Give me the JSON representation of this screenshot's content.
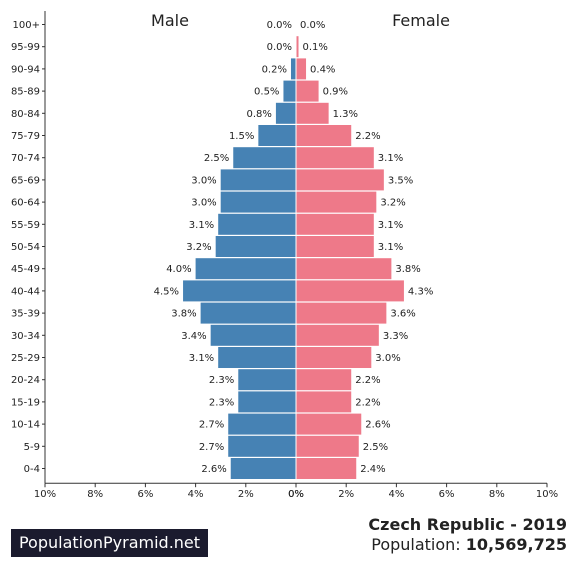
{
  "chart_data": {
    "type": "bar",
    "orientation": "horizontal-pyramid",
    "left_label": "Male",
    "right_label": "Female",
    "categories": [
      "100+",
      "95-99",
      "90-94",
      "85-89",
      "80-84",
      "75-79",
      "70-74",
      "65-69",
      "60-64",
      "55-59",
      "50-54",
      "45-49",
      "40-44",
      "35-39",
      "30-34",
      "25-29",
      "20-24",
      "15-19",
      "10-14",
      "5-9",
      "0-4"
    ],
    "series": [
      {
        "name": "Male",
        "color": "#4682b4",
        "values": [
          0.0,
          0.0,
          0.2,
          0.5,
          0.8,
          1.5,
          2.5,
          3.0,
          3.0,
          3.1,
          3.2,
          4.0,
          4.5,
          3.8,
          3.4,
          3.1,
          2.3,
          2.3,
          2.7,
          2.7,
          2.6
        ],
        "labels": [
          "0.0%",
          "0.0%",
          "0.2%",
          "0.5%",
          "0.8%",
          "1.5%",
          "2.5%",
          "3.0%",
          "3.0%",
          "3.1%",
          "3.2%",
          "4.0%",
          "4.5%",
          "3.8%",
          "3.4%",
          "3.1%",
          "2.3%",
          "2.3%",
          "2.7%",
          "2.7%",
          "2.6%"
        ]
      },
      {
        "name": "Female",
        "color": "#ee7989",
        "values": [
          0.0,
          0.1,
          0.4,
          0.9,
          1.3,
          2.2,
          3.1,
          3.5,
          3.2,
          3.1,
          3.1,
          3.8,
          4.3,
          3.6,
          3.3,
          3.0,
          2.2,
          2.2,
          2.6,
          2.5,
          2.4
        ],
        "labels": [
          "0.0%",
          "0.1%",
          "0.4%",
          "0.9%",
          "1.3%",
          "2.2%",
          "3.1%",
          "3.5%",
          "3.2%",
          "3.1%",
          "3.1%",
          "3.8%",
          "4.3%",
          "3.6%",
          "3.3%",
          "3.0%",
          "2.2%",
          "2.2%",
          "2.6%",
          "2.5%",
          "2.4%"
        ]
      }
    ],
    "x_ticks": [
      "10%",
      "8%",
      "6%",
      "4%",
      "2%",
      "0%",
      "0%",
      "2%",
      "4%",
      "6%",
      "8%",
      "10%"
    ],
    "xlim": [
      0,
      10
    ],
    "grid": false
  },
  "brand": "PopulationPyramid.net",
  "country_title": "Czech Republic - 2019",
  "population_label": "Population:",
  "population_value": "10,569,725"
}
